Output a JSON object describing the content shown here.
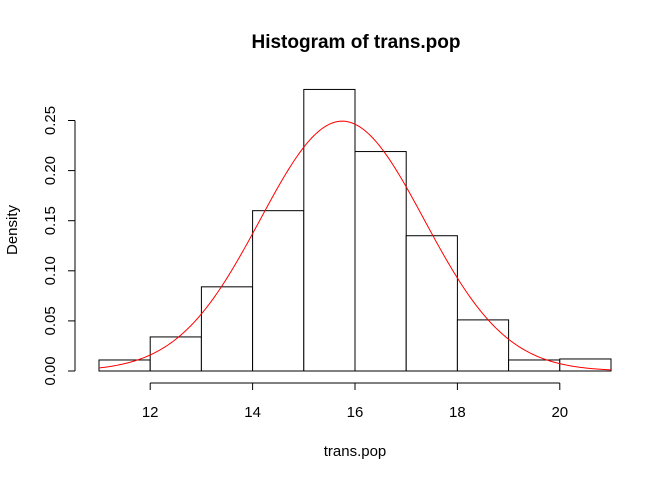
{
  "chart_data": {
    "type": "bar",
    "title": "Histogram of trans.pop",
    "xlabel": "trans.pop",
    "ylabel": "Density",
    "bins": [
      {
        "start": 11,
        "end": 12,
        "density": 0.011
      },
      {
        "start": 12,
        "end": 13,
        "density": 0.034
      },
      {
        "start": 13,
        "end": 14,
        "density": 0.084
      },
      {
        "start": 14,
        "end": 15,
        "density": 0.16
      },
      {
        "start": 15,
        "end": 16,
        "density": 0.281
      },
      {
        "start": 16,
        "end": 17,
        "density": 0.219
      },
      {
        "start": 17,
        "end": 18,
        "density": 0.135
      },
      {
        "start": 18,
        "end": 19,
        "density": 0.051
      },
      {
        "start": 19,
        "end": 20,
        "density": 0.011
      },
      {
        "start": 20,
        "end": 21,
        "density": 0.012
      }
    ],
    "xticks": [
      "12",
      "14",
      "16",
      "18",
      "20"
    ],
    "yticks": [
      "0.00",
      "0.05",
      "0.10",
      "0.15",
      "0.20",
      "0.25"
    ],
    "xlim": [
      11,
      21
    ],
    "ylim": [
      0,
      0.28
    ],
    "density_curve": {
      "mean": 15.75,
      "sd": 1.6,
      "color": "#ff0000"
    },
    "bar_fill": "#ffffff",
    "bar_stroke": "#000000",
    "grid": false
  }
}
